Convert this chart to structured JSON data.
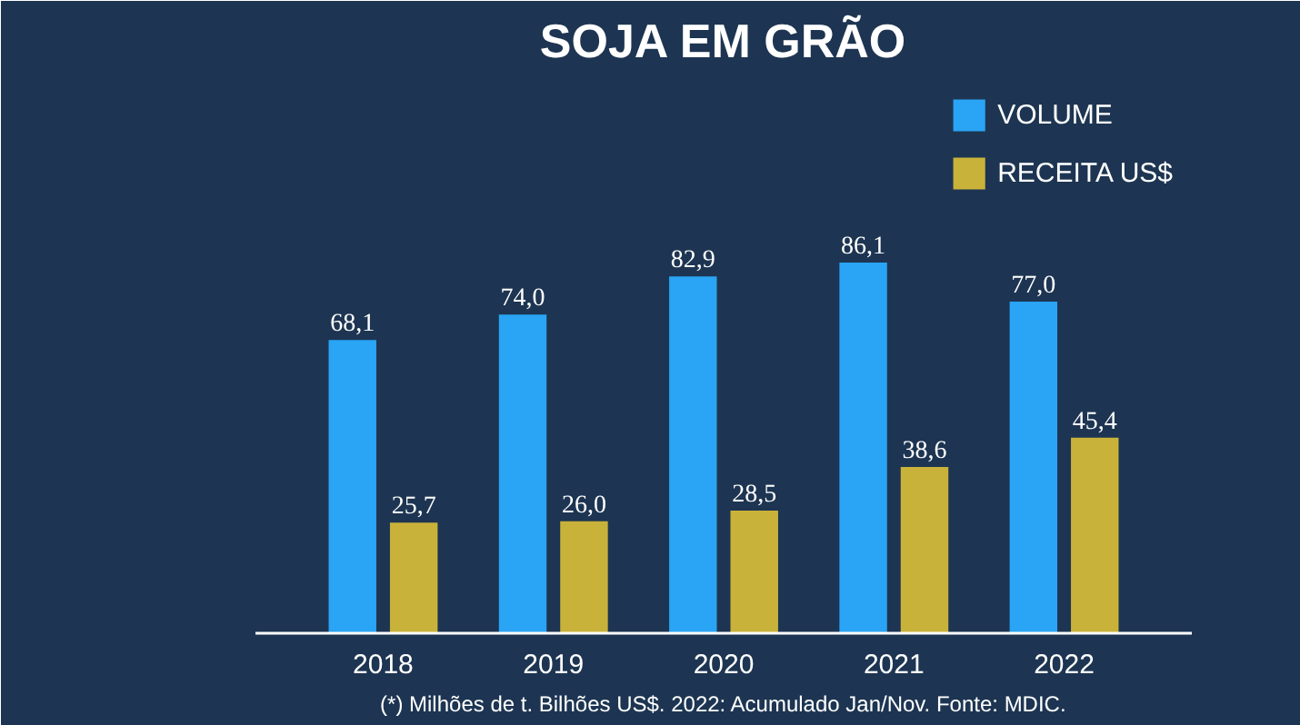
{
  "chart_data": {
    "type": "bar",
    "title": "SOJA EM GRÃO",
    "categories": [
      "2018",
      "2019",
      "2020",
      "2021",
      "2022"
    ],
    "series": [
      {
        "name": "VOLUME",
        "color": "#2aa4f4",
        "values": [
          68.1,
          74.0,
          82.9,
          86.1,
          77.0
        ],
        "value_labels": [
          "68,1",
          "74,0",
          "82,9",
          "86,1",
          "77,0"
        ]
      },
      {
        "name": "RECEITA US$",
        "color": "#c9b23a",
        "values": [
          25.7,
          26.0,
          28.5,
          38.6,
          45.4
        ],
        "value_labels": [
          "25,7",
          "26,0",
          "28,5",
          "38,6",
          "45,4"
        ]
      }
    ],
    "legend": "top right",
    "annotations": [
      "(*) Milhões de t. Bilhões US$. 2022: Acumulado Jan/Nov. Fonte: MDIC."
    ]
  }
}
